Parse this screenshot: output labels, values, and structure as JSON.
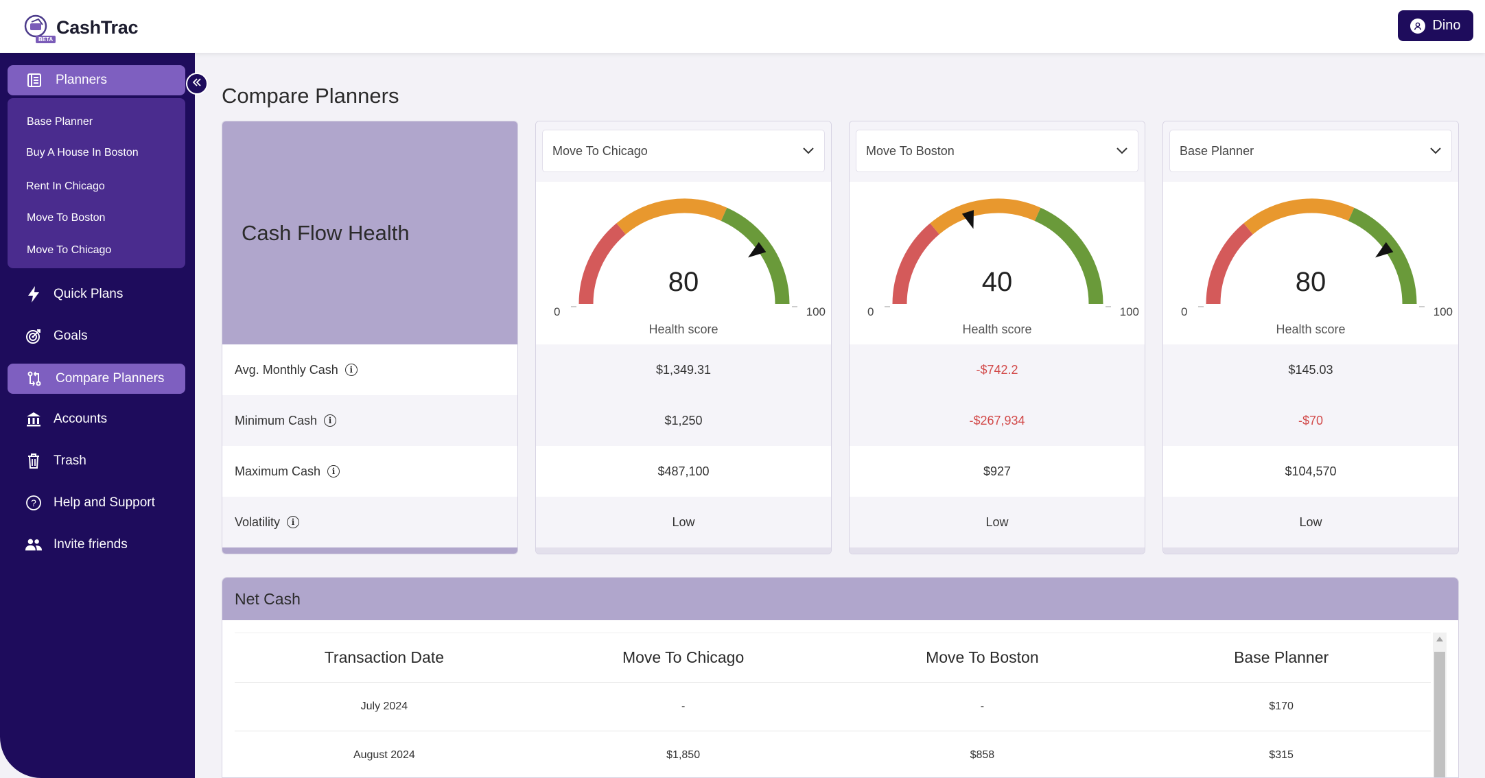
{
  "app": {
    "name": "CashTrac",
    "badge": "BETA"
  },
  "user": {
    "name": "Dino"
  },
  "sidebar": {
    "planners_label": "Planners",
    "planners": [
      "Base Planner",
      "Buy A House In Boston",
      "Rent In Chicago",
      "Move To Boston",
      "Move To Chicago"
    ],
    "items": [
      {
        "label": "Quick Plans",
        "icon": "bolt-icon"
      },
      {
        "label": "Goals",
        "icon": "target-icon"
      },
      {
        "label": "Compare Planners",
        "icon": "compare-icon",
        "active": true
      },
      {
        "label": "Accounts",
        "icon": "bank-icon"
      },
      {
        "label": "Trash",
        "icon": "trash-icon"
      },
      {
        "label": "Help and Support",
        "icon": "help-icon"
      },
      {
        "label": "Invite friends",
        "icon": "users-icon"
      }
    ]
  },
  "page": {
    "title": "Compare Planners"
  },
  "health": {
    "title": "Cash Flow Health",
    "metrics": [
      "Avg. Monthly Cash",
      "Minimum Cash",
      "Maximum Cash",
      "Volatility"
    ],
    "gauge_min": "0",
    "gauge_max": "100",
    "caption": "Health score",
    "planners": [
      {
        "name": "Move To Chicago",
        "score": 80,
        "values": [
          "$1,349.31",
          "$1,250",
          "$487,100",
          "Low"
        ],
        "negative": [
          false,
          false,
          false,
          false
        ]
      },
      {
        "name": "Move To Boston",
        "score": 40,
        "values": [
          "-$742.2",
          "-$267,934",
          "$927",
          "Low"
        ],
        "negative": [
          true,
          true,
          false,
          false
        ]
      },
      {
        "name": "Base Planner",
        "score": 80,
        "values": [
          "$145.03",
          "-$70",
          "$104,570",
          "Low"
        ],
        "negative": [
          false,
          true,
          false,
          false
        ]
      }
    ],
    "gauge_colors": {
      "low": "#d45a5a",
      "mid": "#e8982e",
      "high": "#6a9a3a"
    }
  },
  "net_cash": {
    "title": "Net Cash",
    "columns": [
      "Transaction Date",
      "Move To Chicago",
      "Move To Boston",
      "Base Planner"
    ],
    "rows": [
      [
        "July 2024",
        "-",
        "-",
        "$170"
      ],
      [
        "August 2024",
        "$1,850",
        "$858",
        "$315"
      ]
    ]
  }
}
